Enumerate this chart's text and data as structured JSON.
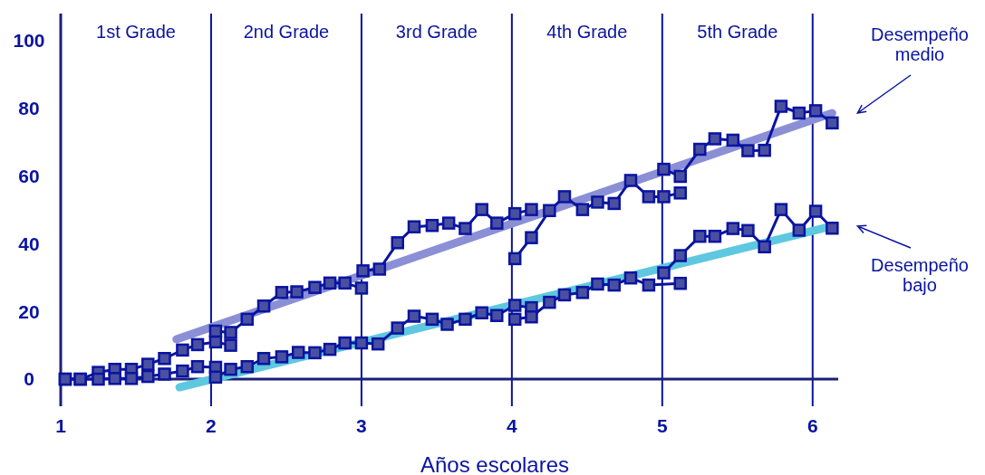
{
  "chart_data": {
    "type": "line",
    "xlabel": "Años escolares",
    "xlim": [
      1,
      6.17
    ],
    "ylim": [
      -8,
      108
    ],
    "xticks": [
      1,
      2,
      3,
      4,
      5,
      6
    ],
    "yticks": [
      0,
      20,
      40,
      60,
      80,
      100
    ],
    "grid": false,
    "marker": "square",
    "series": [
      {
        "color": "#8a8fd6",
        "marker": "none",
        "x": [
          1.77,
          6.13
        ],
        "values": [
          11.8,
          78.6
        ]
      },
      {
        "color": "#5ec8e0",
        "marker": "none",
        "x": [
          1.79,
          6.13
        ],
        "values": [
          -2.4,
          45.2
        ]
      },
      {
        "color": "#0a14a0",
        "x": [
          1.03,
          1.13,
          1.25,
          1.36,
          1.47,
          1.58,
          1.69,
          1.81,
          1.91,
          2.03,
          2.13
        ],
        "values": [
          0,
          0,
          2,
          2.9,
          2.9,
          4.4,
          6.1,
          8.6,
          10.2,
          11,
          10
        ]
      },
      {
        "color": "#0a14a0",
        "x": [
          1.03,
          1.13,
          1.25,
          1.36,
          1.47,
          1.58,
          1.69,
          1.81,
          1.91,
          2.03
        ],
        "values": [
          0,
          0,
          0,
          0.2,
          0.2,
          0.8,
          1.5,
          2.4,
          3.7,
          3.5
        ]
      },
      {
        "color": "#0a14a0",
        "x": [
          2.03,
          2.13,
          2.24,
          2.35,
          2.47,
          2.57,
          2.69,
          2.79,
          2.89,
          3.0
        ],
        "values": [
          14.2,
          13.8,
          17.7,
          21.6,
          25.6,
          25.8,
          27.1,
          28.4,
          28.4,
          26.9
        ]
      },
      {
        "color": "#0a14a0",
        "x": [
          2.03,
          2.13,
          2.24,
          2.35,
          2.47,
          2.58,
          2.69,
          2.79,
          2.89,
          3.0,
          3.11,
          3.24,
          3.35,
          3.47,
          3.57,
          3.69,
          3.8,
          3.9,
          4.02,
          4.13
        ],
        "values": [
          0.6,
          2.9,
          3.7,
          6.1,
          6.6,
          7.9,
          7.8,
          8.8,
          10.7,
          10.7,
          10.4,
          15.1,
          18.6,
          17.7,
          16.2,
          17.7,
          19.6,
          18.8,
          21.8,
          21.1
        ]
      },
      {
        "color": "#0a14a0",
        "x": [
          3.01,
          3.12,
          3.24,
          3.35,
          3.47,
          3.58,
          3.69,
          3.8,
          3.9,
          4.02,
          4.13
        ],
        "values": [
          32,
          32.5,
          40.3,
          45,
          45.4,
          46.1,
          44.5,
          50.1,
          46.1,
          48.9,
          50.1
        ]
      },
      {
        "color": "#0a14a0",
        "x": [
          4.02,
          4.13,
          4.25,
          4.35,
          4.47,
          4.57,
          4.68,
          4.79,
          4.91,
          5.01,
          5.12
        ],
        "values": [
          35.6,
          41.8,
          49.8,
          53.9,
          50.1,
          52.3,
          51.9,
          58.7,
          53.9,
          53.9,
          55.0
        ]
      },
      {
        "color": "#0a14a0",
        "x": [
          4.02,
          4.13,
          4.25,
          4.35,
          4.47,
          4.57,
          4.68,
          4.79,
          4.91,
          5.12
        ],
        "values": [
          17.7,
          18.4,
          22.7,
          24.9,
          25.6,
          28.1,
          27.8,
          29.9,
          27.8,
          28.3
        ]
      },
      {
        "color": "#0a14a0",
        "x": [
          5.01,
          5.12,
          5.25,
          5.35,
          5.47,
          5.57,
          5.68,
          5.79,
          5.91,
          6.02,
          6.13
        ],
        "values": [
          62,
          59.9,
          67.9,
          71,
          70.6,
          67.5,
          67.6,
          80.6,
          78.6,
          79.3,
          75.7
        ]
      },
      {
        "color": "#0a14a0",
        "x": [
          5.01,
          5.12,
          5.25,
          5.35,
          5.47,
          5.57,
          5.68,
          5.79,
          5.91,
          6.02,
          6.13
        ],
        "values": [
          31.4,
          36.5,
          42.2,
          42.2,
          44.5,
          43.9,
          39.1,
          50.1,
          44,
          49.6,
          44.6
        ]
      }
    ],
    "ref_lines": [
      {
        "axis": "x",
        "value": 2,
        "color": "#0a14a0"
      },
      {
        "axis": "x",
        "value": 3,
        "color": "#0a14a0"
      },
      {
        "axis": "x",
        "value": 4,
        "color": "#0a14a0"
      },
      {
        "axis": "x",
        "value": 5,
        "color": "#0a14a0"
      },
      {
        "axis": "x",
        "value": 6,
        "color": "#0a14a0"
      }
    ],
    "annotations": [
      "1st Grade",
      "2nd Grade",
      "3rd Grade",
      "4th Grade",
      "5th Grade",
      "Desempeño\nmedio",
      "Desempeño\nbajo"
    ]
  }
}
